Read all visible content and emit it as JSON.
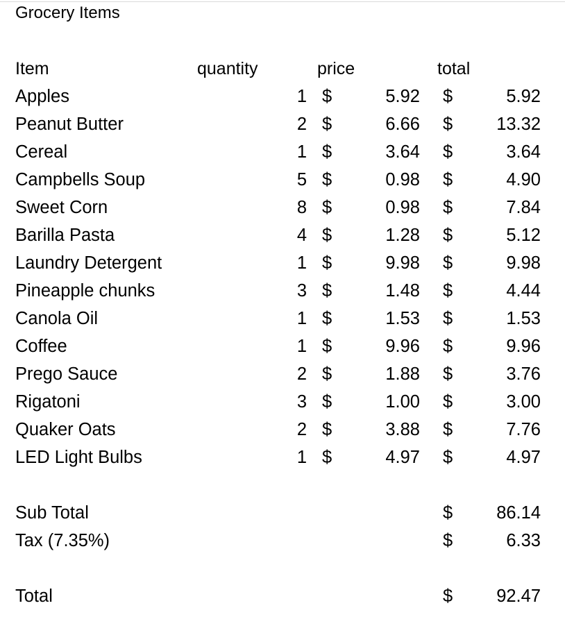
{
  "title": "Grocery Items",
  "headers": {
    "item": "Item",
    "quantity": "quantity",
    "price": "price",
    "total": "total"
  },
  "currency_symbol": "$",
  "items": [
    {
      "name": "Apples",
      "quantity": "1",
      "price": "5.92",
      "total": "5.92"
    },
    {
      "name": "Peanut Butter",
      "quantity": "2",
      "price": "6.66",
      "total": "13.32"
    },
    {
      "name": "Cereal",
      "quantity": "1",
      "price": "3.64",
      "total": "3.64"
    },
    {
      "name": "Campbells Soup",
      "quantity": "5",
      "price": "0.98",
      "total": "4.90"
    },
    {
      "name": "Sweet Corn",
      "quantity": "8",
      "price": "0.98",
      "total": "7.84"
    },
    {
      "name": "Barilla Pasta",
      "quantity": "4",
      "price": "1.28",
      "total": "5.12"
    },
    {
      "name": "Laundry Detergent",
      "quantity": "1",
      "price": "9.98",
      "total": "9.98"
    },
    {
      "name": "Pineapple chunks",
      "quantity": "3",
      "price": "1.48",
      "total": "4.44"
    },
    {
      "name": "Canola Oil",
      "quantity": "1",
      "price": "1.53",
      "total": "1.53"
    },
    {
      "name": "Coffee",
      "quantity": "1",
      "price": "9.96",
      "total": "9.96"
    },
    {
      "name": "Prego Sauce",
      "quantity": "2",
      "price": "1.88",
      "total": "3.76"
    },
    {
      "name": "Rigatoni",
      "quantity": "3",
      "price": "1.00",
      "total": "3.00"
    },
    {
      "name": "Quaker Oats",
      "quantity": "2",
      "price": "3.88",
      "total": "7.76"
    },
    {
      "name": "LED Light Bulbs",
      "quantity": "1",
      "price": "4.97",
      "total": "4.97"
    }
  ],
  "subtotal": {
    "label": "Sub Total",
    "value": "86.14"
  },
  "tax": {
    "label": "Tax (7.35%)",
    "value": "6.33"
  },
  "grand_total": {
    "label": "Total",
    "value": "92.47"
  }
}
